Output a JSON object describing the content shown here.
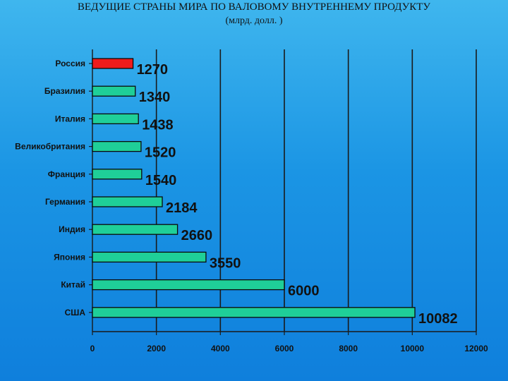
{
  "chart_data": {
    "type": "bar",
    "orientation": "horizontal",
    "title": "ВЕДУЩИЕ СТРАНЫ МИРА ПО ВАЛОВОМУ ВНУТРЕННЕМУ ПРОДУКТУ",
    "subtitle": "(млрд. долл. )",
    "categories": [
      "Россия",
      "Бразилия",
      "Италия",
      "Великобритания",
      "Франция",
      "Германия",
      "Индия",
      "Япония",
      "Китай",
      "США"
    ],
    "values": [
      1270,
      1340,
      1438,
      1520,
      1540,
      2184,
      2660,
      3550,
      6000,
      10082
    ],
    "value_labels": [
      "1270",
      "1340",
      "1438",
      "1520",
      "1540",
      "2184",
      "2660",
      "3550",
      "6000",
      "10082"
    ],
    "xlim": [
      0,
      12000
    ],
    "xticks": [
      0,
      2000,
      4000,
      6000,
      8000,
      10000,
      12000
    ],
    "xtick_labels": [
      "0",
      "2000",
      "4000",
      "6000",
      "8000",
      "10000",
      "12000"
    ],
    "grid": "vertical",
    "colors": {
      "default_bar": "#1fcf98",
      "highlight_bar": "#ee1c1c",
      "highlight_category": "Россия",
      "bar_stroke": "#0a0a0a",
      "grid": "#1a1a1a"
    }
  }
}
